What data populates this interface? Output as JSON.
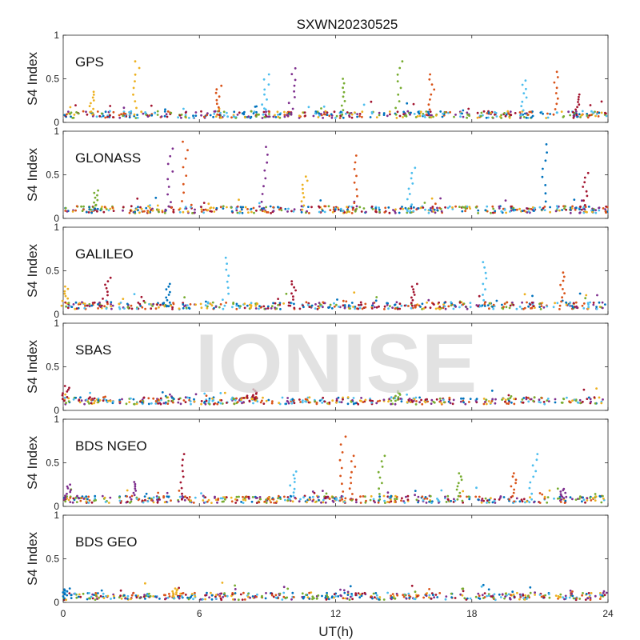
{
  "chart_data": {
    "type": "scatter",
    "title": "SXWN20230525",
    "xlabel": "UT(h)",
    "ylabel": "S4 Index",
    "xlim": [
      0,
      24
    ],
    "ylim": [
      0,
      1
    ],
    "xticks": [
      "0",
      "6",
      "12",
      "18",
      "24"
    ],
    "yticks": [
      "0",
      "0.5",
      "1"
    ],
    "watermark": "IONISE",
    "colors": [
      "#0072BD",
      "#D95319",
      "#EDB120",
      "#7E2F8E",
      "#77AC30",
      "#4DBEEE",
      "#A2142F"
    ],
    "data_gaps_hours": [
      [
        2.25,
        2.45
      ],
      [
        4.9,
        5.05
      ],
      [
        5.85,
        6.05
      ],
      [
        7.25,
        7.4
      ],
      [
        10.25,
        10.4
      ],
      [
        13.35,
        13.5
      ],
      [
        13.95,
        14.1
      ],
      [
        17.3,
        17.45
      ],
      [
        17.95,
        18.15
      ],
      [
        19.1,
        19.2
      ],
      [
        20.0,
        20.1
      ],
      [
        20.8,
        20.95
      ],
      [
        21.45,
        21.6
      ]
    ],
    "panels": [
      {
        "name": "GPS",
        "baseline": 0.09,
        "spikes": [
          {
            "x": 3.2,
            "y": 0.7,
            "color": 2
          },
          {
            "x": 1.3,
            "y": 0.35,
            "color": 2
          },
          {
            "x": 6.8,
            "y": 0.42,
            "color": 1
          },
          {
            "x": 8.9,
            "y": 0.55,
            "color": 5
          },
          {
            "x": 10.1,
            "y": 0.62,
            "color": 3
          },
          {
            "x": 12.3,
            "y": 0.5,
            "color": 4
          },
          {
            "x": 14.8,
            "y": 0.7,
            "color": 4
          },
          {
            "x": 16.2,
            "y": 0.55,
            "color": 1
          },
          {
            "x": 20.3,
            "y": 0.48,
            "color": 5
          },
          {
            "x": 21.7,
            "y": 0.58,
            "color": 1
          },
          {
            "x": 22.6,
            "y": 0.32,
            "color": 6
          }
        ]
      },
      {
        "name": "GLONASS",
        "baseline": 0.1,
        "spikes": [
          {
            "x": 4.7,
            "y": 0.8,
            "color": 3
          },
          {
            "x": 5.3,
            "y": 0.88,
            "color": 1
          },
          {
            "x": 8.9,
            "y": 0.82,
            "color": 3
          },
          {
            "x": 12.9,
            "y": 0.72,
            "color": 1
          },
          {
            "x": 15.3,
            "y": 0.58,
            "color": 5
          },
          {
            "x": 21.2,
            "y": 0.85,
            "color": 0
          },
          {
            "x": 23.0,
            "y": 0.52,
            "color": 6
          },
          {
            "x": 1.4,
            "y": 0.32,
            "color": 4
          },
          {
            "x": 10.6,
            "y": 0.48,
            "color": 2
          }
        ]
      },
      {
        "name": "GALILEO",
        "baseline": 0.1,
        "spikes": [
          {
            "x": 1.9,
            "y": 0.42,
            "color": 6
          },
          {
            "x": 4.6,
            "y": 0.35,
            "color": 0
          },
          {
            "x": 7.2,
            "y": 0.65,
            "color": 5
          },
          {
            "x": 10.1,
            "y": 0.38,
            "color": 6
          },
          {
            "x": 15.4,
            "y": 0.35,
            "color": 6
          },
          {
            "x": 18.5,
            "y": 0.6,
            "color": 5
          },
          {
            "x": 22.0,
            "y": 0.48,
            "color": 1
          },
          {
            "x": 0.1,
            "y": 0.32,
            "color": 2
          }
        ]
      },
      {
        "name": "SBAS",
        "baseline": 0.11,
        "spikes": [
          {
            "x": 0.1,
            "y": 0.28,
            "color": 6
          },
          {
            "x": 8.4,
            "y": 0.24,
            "color": 6
          },
          {
            "x": 14.7,
            "y": 0.22,
            "color": 4
          }
        ]
      },
      {
        "name": "BDS NGEO",
        "baseline": 0.08,
        "spikes": [
          {
            "x": 5.3,
            "y": 0.6,
            "color": 6
          },
          {
            "x": 3.1,
            "y": 0.28,
            "color": 3
          },
          {
            "x": 10.1,
            "y": 0.4,
            "color": 5
          },
          {
            "x": 12.3,
            "y": 0.8,
            "color": 1
          },
          {
            "x": 12.7,
            "y": 0.58,
            "color": 1
          },
          {
            "x": 14.0,
            "y": 0.58,
            "color": 4
          },
          {
            "x": 17.4,
            "y": 0.38,
            "color": 4
          },
          {
            "x": 19.8,
            "y": 0.38,
            "color": 1
          },
          {
            "x": 20.7,
            "y": 0.6,
            "color": 5
          },
          {
            "x": 0.2,
            "y": 0.25,
            "color": 3
          },
          {
            "x": 22.0,
            "y": 0.2,
            "color": 3
          }
        ]
      },
      {
        "name": "BDS GEO",
        "baseline": 0.07,
        "spikes": [
          {
            "x": 0.1,
            "y": 0.16,
            "color": 0
          },
          {
            "x": 4.9,
            "y": 0.16,
            "color": 2
          }
        ]
      }
    ]
  }
}
